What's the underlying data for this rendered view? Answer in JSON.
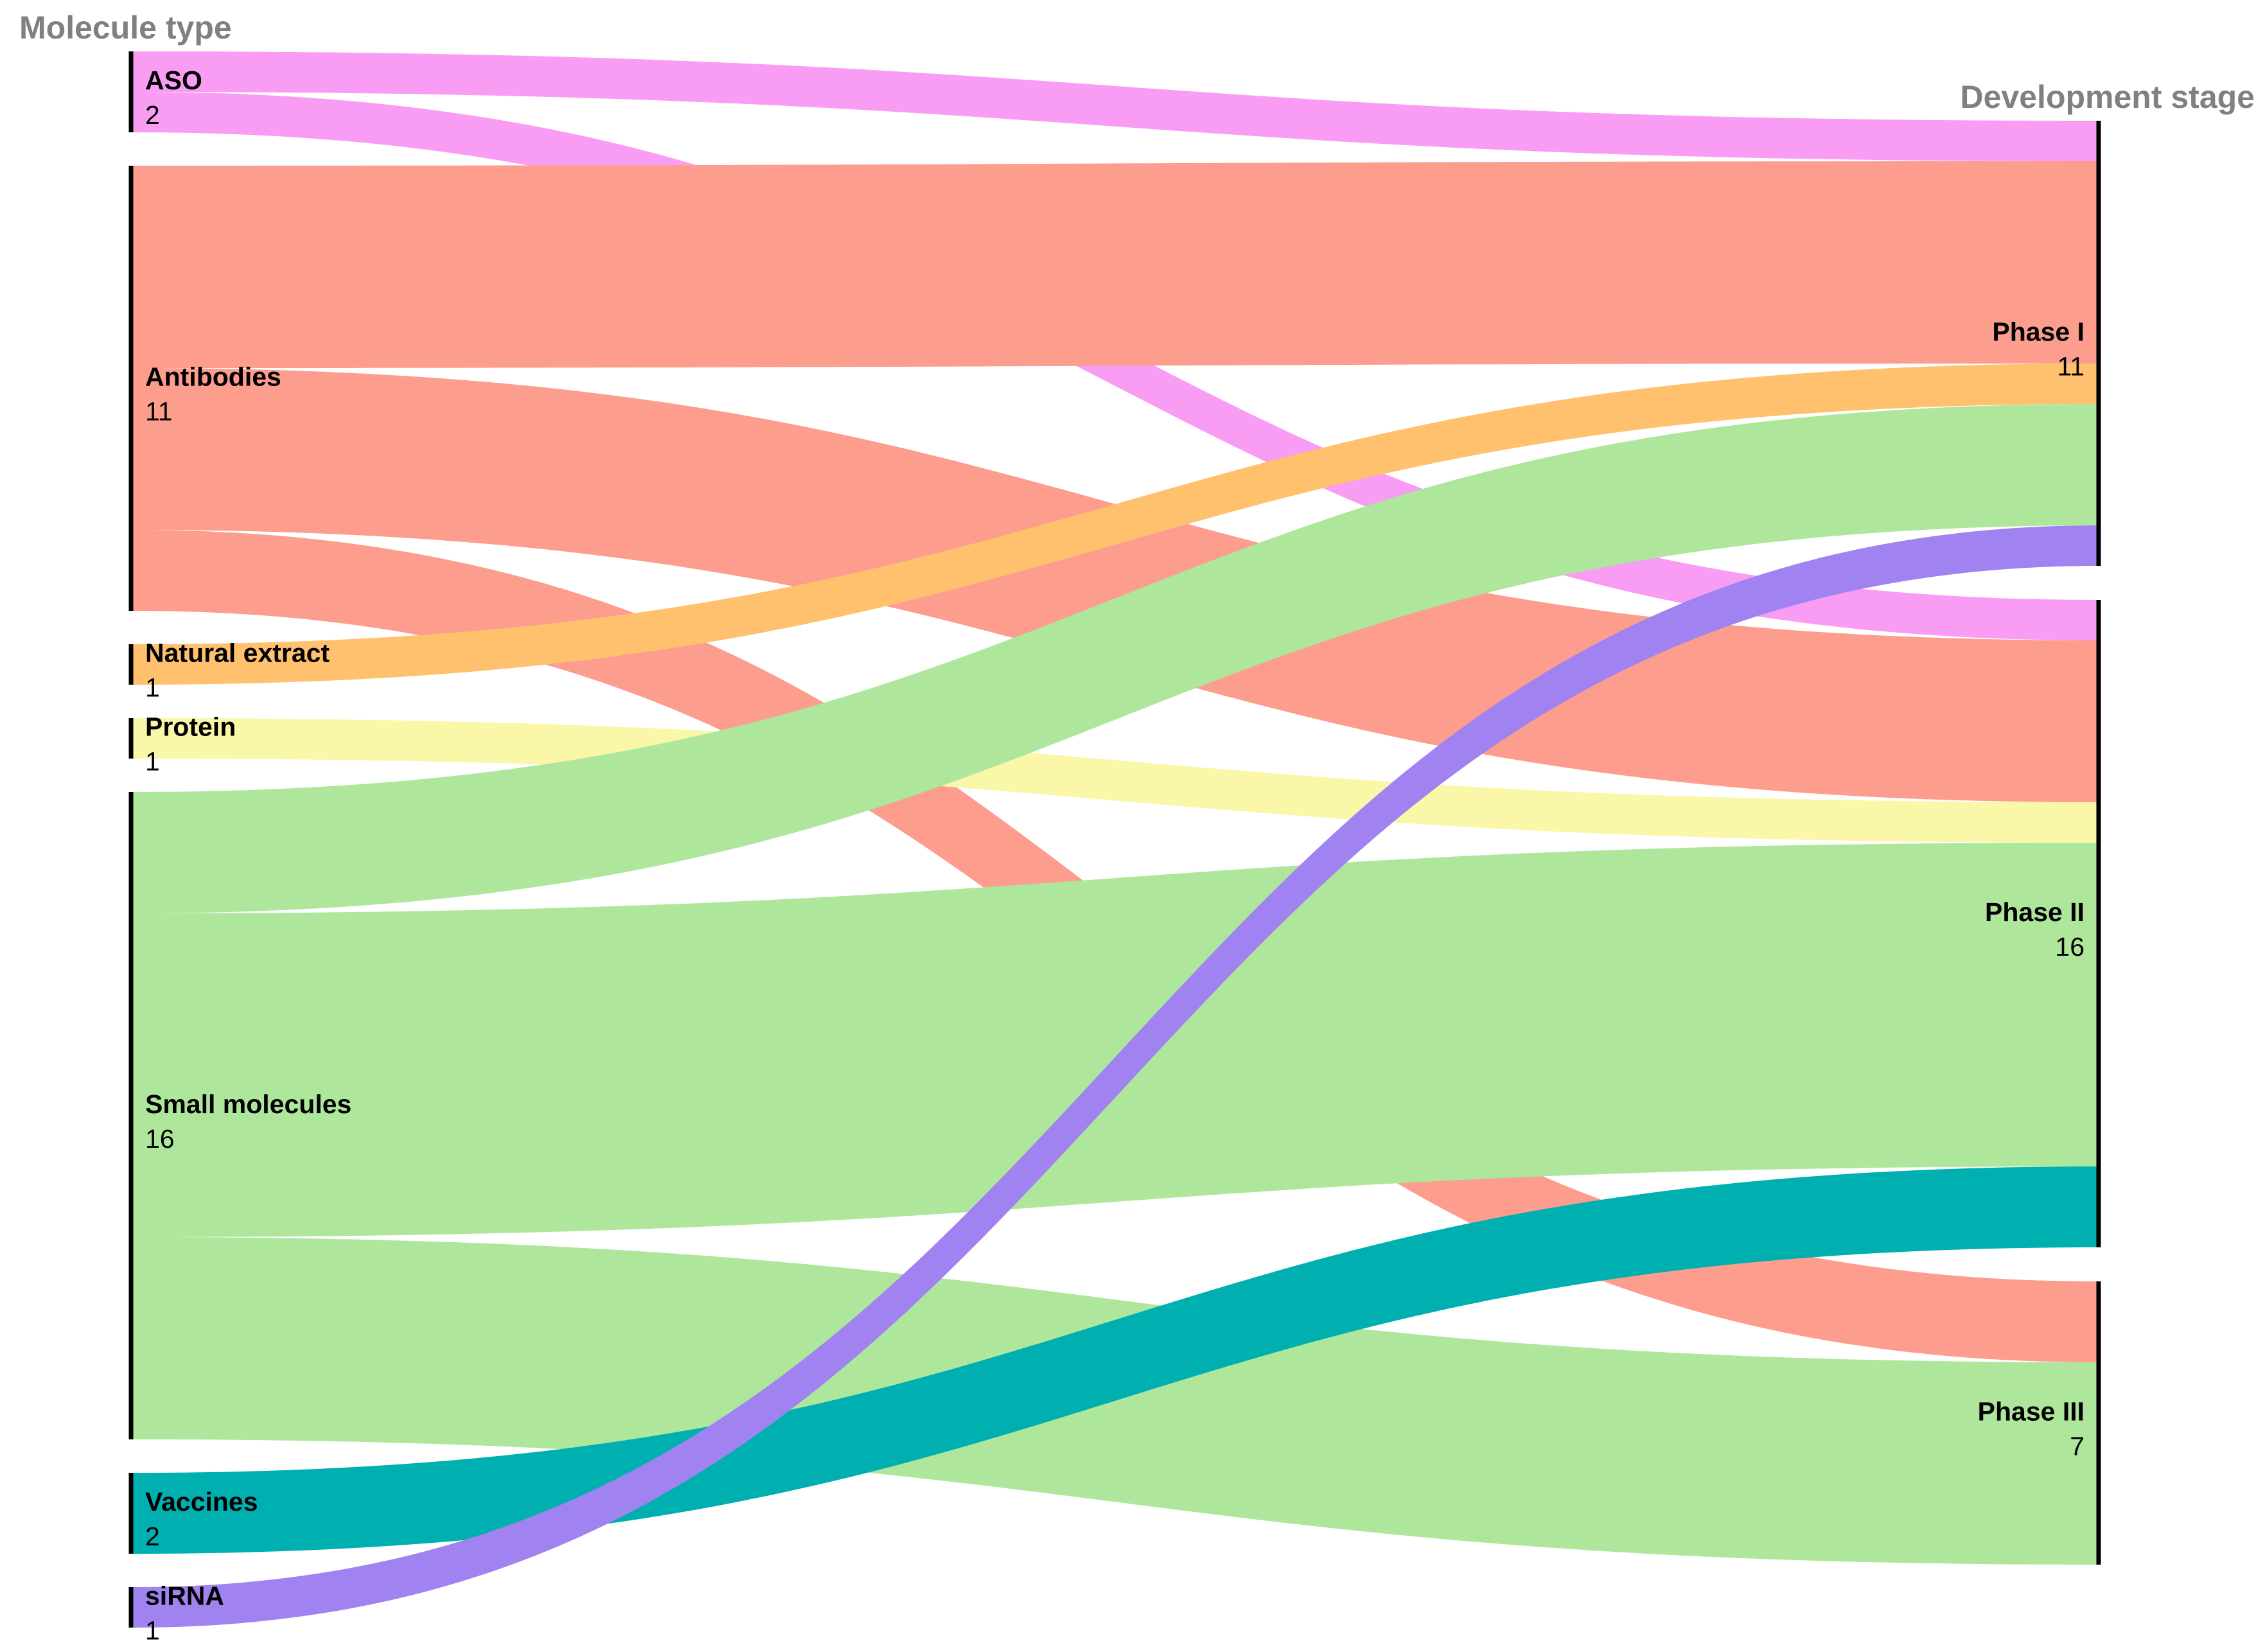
{
  "chart_data": {
    "type": "sankey",
    "left_axis_title": "Molecule type",
    "right_axis_title": "Development stage",
    "left_nodes": [
      {
        "id": "aso",
        "name": "ASO",
        "count": "2",
        "value": 2
      },
      {
        "id": "antibodies",
        "name": "Antibodies",
        "count": "11",
        "value": 11
      },
      {
        "id": "natural",
        "name": "Natural extract",
        "count": "1",
        "value": 1
      },
      {
        "id": "protein",
        "name": "Protein",
        "count": "1",
        "value": 1
      },
      {
        "id": "small",
        "name": "Small molecules",
        "count": "16",
        "value": 16
      },
      {
        "id": "vaccines",
        "name": "Vaccines",
        "count": "2",
        "value": 2
      },
      {
        "id": "sirna",
        "name": "siRNA",
        "count": "1",
        "value": 1
      }
    ],
    "right_nodes": [
      {
        "id": "p1",
        "name": "Phase I",
        "count": "11",
        "value": 11
      },
      {
        "id": "p2",
        "name": "Phase II",
        "count": "16",
        "value": 16
      },
      {
        "id": "p3",
        "name": "Phase III",
        "count": "7",
        "value": 7
      }
    ],
    "flows": [
      {
        "source": "aso",
        "target": "p1",
        "value": 1,
        "color": "#F99CF4"
      },
      {
        "source": "aso",
        "target": "p2",
        "value": 1,
        "color": "#F99CF4"
      },
      {
        "source": "antibodies",
        "target": "p1",
        "value": 5,
        "color": "#FC9D8E"
      },
      {
        "source": "antibodies",
        "target": "p2",
        "value": 4,
        "color": "#FC9D8E"
      },
      {
        "source": "antibodies",
        "target": "p3",
        "value": 2,
        "color": "#FC9D8E"
      },
      {
        "source": "natural",
        "target": "p1",
        "value": 1,
        "color": "#FFC16E"
      },
      {
        "source": "protein",
        "target": "p2",
        "value": 1,
        "color": "#FAF7A8"
      },
      {
        "source": "small",
        "target": "p1",
        "value": 3,
        "color": "#AEE69C"
      },
      {
        "source": "small",
        "target": "p2",
        "value": 8,
        "color": "#AEE69C"
      },
      {
        "source": "small",
        "target": "p3",
        "value": 5,
        "color": "#AEE69C"
      },
      {
        "source": "vaccines",
        "target": "p2",
        "value": 2,
        "color": "#00B0B0"
      },
      {
        "source": "sirna",
        "target": "p1",
        "value": 1,
        "color": "#A082F0"
      }
    ]
  }
}
